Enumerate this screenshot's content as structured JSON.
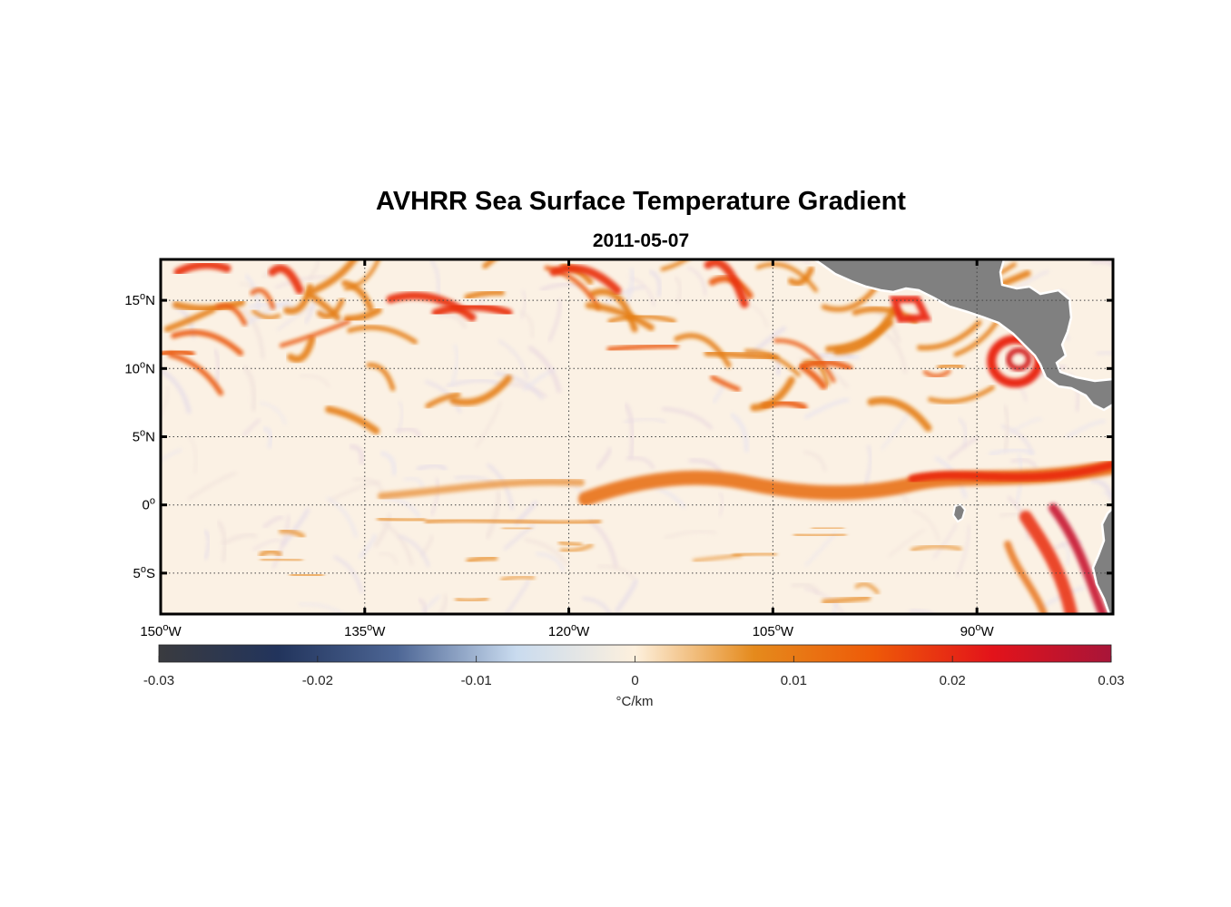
{
  "title": "AVHRR Sea Surface Temperature Gradient",
  "subtitle": "2011-05-07",
  "map": {
    "lon_range": [
      -150,
      -80
    ],
    "lat_range": [
      -8,
      18
    ],
    "grid_style": "dotted",
    "land_color": "#808080",
    "lon_ticks": [
      {
        "value": -150,
        "num": "150",
        "hemi": "W"
      },
      {
        "value": -135,
        "num": "135",
        "hemi": "W"
      },
      {
        "value": -120,
        "num": "120",
        "hemi": "W"
      },
      {
        "value": -105,
        "num": "105",
        "hemi": "W"
      },
      {
        "value": -90,
        "num": "90",
        "hemi": "W"
      }
    ],
    "lat_ticks": [
      {
        "value": 15,
        "num": "15",
        "hemi": "N"
      },
      {
        "value": 10,
        "num": "10",
        "hemi": "N"
      },
      {
        "value": 5,
        "num": "5",
        "hemi": "N"
      },
      {
        "value": 0,
        "num": "0",
        "hemi": ""
      },
      {
        "value": -5,
        "num": "5",
        "hemi": "S"
      }
    ]
  },
  "colorbar": {
    "range": [
      -0.03,
      0.03
    ],
    "ticks": [
      "-0.03",
      "-0.02",
      "-0.01",
      "0",
      "0.01",
      "0.02",
      "0.03"
    ],
    "tick_values": [
      -0.03,
      -0.02,
      -0.01,
      0,
      0.01,
      0.02,
      0.03
    ],
    "label": "°C/km",
    "colors": [
      "#3a3b3f",
      "#22345c",
      "#4d6695",
      "#c9dbef",
      "#fdf0dd",
      "#e58a1c",
      "#ee5a08",
      "#e3131a",
      "#a81539"
    ]
  },
  "chart_data": {
    "type": "heatmap",
    "title": "AVHRR Sea Surface Temperature Gradient",
    "subtitle": "2011-05-07",
    "variable_units": "°C/km",
    "value_range": [
      -0.03,
      0.03
    ],
    "x_range": [
      -150,
      -80
    ],
    "y_range": [
      -8,
      18
    ],
    "features": [
      {
        "name": "equatorial front",
        "lat_approx": 1,
        "lon_from": -122,
        "lon_to": -80,
        "value_approx": 0.015
      },
      {
        "name": "eddy west of Central America",
        "lat_approx": 10,
        "lon_approx": -88,
        "value_approx": 0.02
      },
      {
        "name": "northern fronts",
        "lat_approx": 15,
        "lon_from": -150,
        "lon_to": -95,
        "value_approx": 0.013
      },
      {
        "name": "Peru coastal upwelling",
        "lat_approx": -4,
        "lon_approx": -82,
        "value_approx": 0.022
      }
    ]
  }
}
